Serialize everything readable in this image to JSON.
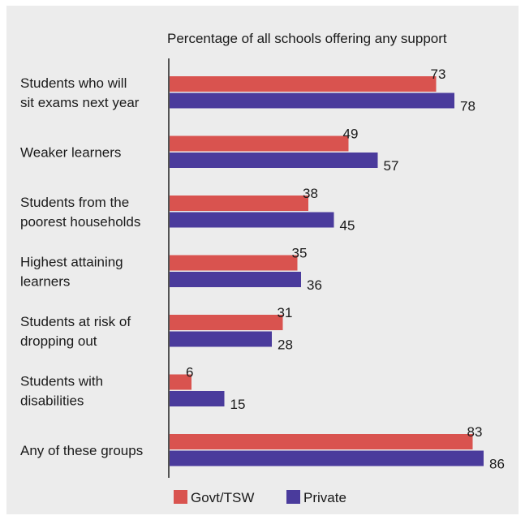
{
  "chart_data": {
    "type": "bar",
    "orientation": "horizontal",
    "title": "Percentage of all schools offering any support",
    "categories": [
      [
        "Students who will",
        "sit exams next year"
      ],
      [
        "Weaker learners"
      ],
      [
        "Students from the",
        "poorest households"
      ],
      [
        "Highest attaining",
        "learners"
      ],
      [
        "Students at risk of",
        "dropping out"
      ],
      [
        "Students with",
        "disabilities"
      ],
      [
        "Any of these groups"
      ]
    ],
    "series": [
      {
        "name": "Govt/TSW",
        "color": "#d9534f",
        "values": [
          73,
          49,
          38,
          35,
          31,
          6,
          83
        ]
      },
      {
        "name": "Private",
        "color": "#4a3b9c",
        "values": [
          78,
          57,
          45,
          36,
          28,
          15,
          86
        ]
      }
    ],
    "xlim": [
      0,
      100
    ],
    "grid": false,
    "legend": "bottom"
  }
}
